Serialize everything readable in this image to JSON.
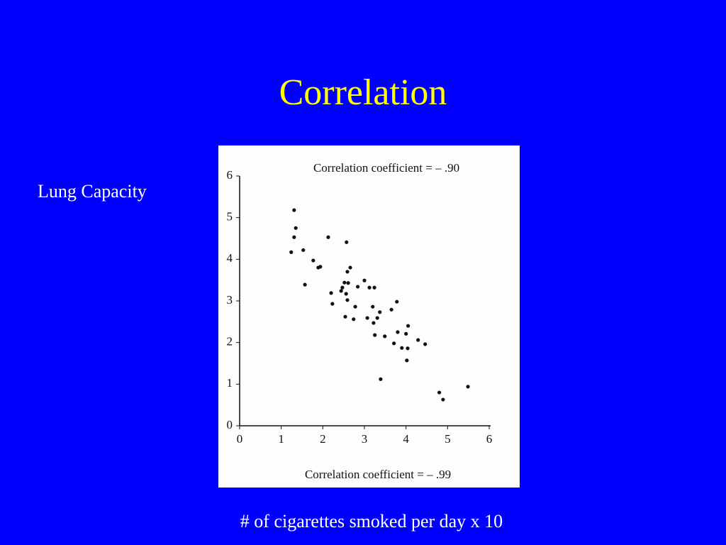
{
  "chart_data": {
    "type": "scatter",
    "title": "Correlation",
    "y_label": "Lung Capacity",
    "x_label": "# of cigarettes smoked per day x 10",
    "annotations": [
      "Correlation coefficient = – .90",
      "Correlation coefficient = – .99"
    ],
    "x": [
      1.31,
      1.35,
      1.31,
      1.24,
      1.53,
      2.13,
      2.57,
      1.77,
      1.89,
      1.94,
      1.57,
      2.66,
      2.59,
      2.2,
      2.23,
      2.47,
      2.52,
      2.44,
      2.61,
      2.56,
      2.59,
      2.54,
      2.84,
      3.0,
      3.12,
      3.24,
      2.78,
      2.74,
      3.2,
      3.07,
      3.22,
      3.25,
      3.31,
      3.37,
      3.49,
      3.65,
      3.78,
      3.71,
      3.8,
      3.9,
      4.0,
      4.05,
      4.04,
      4.02,
      4.29,
      4.46,
      3.39,
      4.8,
      4.89,
      5.49
    ],
    "values": [
      5.18,
      4.75,
      4.53,
      4.17,
      4.22,
      4.53,
      4.41,
      3.97,
      3.8,
      3.82,
      3.39,
      3.8,
      3.7,
      3.19,
      2.93,
      3.32,
      3.44,
      3.24,
      3.43,
      3.17,
      3.02,
      2.62,
      3.34,
      3.49,
      3.32,
      3.32,
      2.86,
      2.56,
      2.86,
      2.59,
      2.47,
      2.18,
      2.59,
      2.73,
      2.15,
      2.79,
      2.98,
      1.98,
      2.25,
      1.87,
      2.21,
      2.4,
      1.86,
      1.57,
      2.06,
      1.96,
      1.12,
      0.8,
      0.63,
      0.94
    ],
    "color": "#111111",
    "xlim": [
      0,
      6
    ],
    "ylim": [
      0,
      6
    ],
    "xticks": [
      0,
      1,
      2,
      3,
      4,
      5,
      6
    ],
    "yticks": [
      0,
      1,
      2,
      3,
      4,
      5,
      6
    ]
  }
}
